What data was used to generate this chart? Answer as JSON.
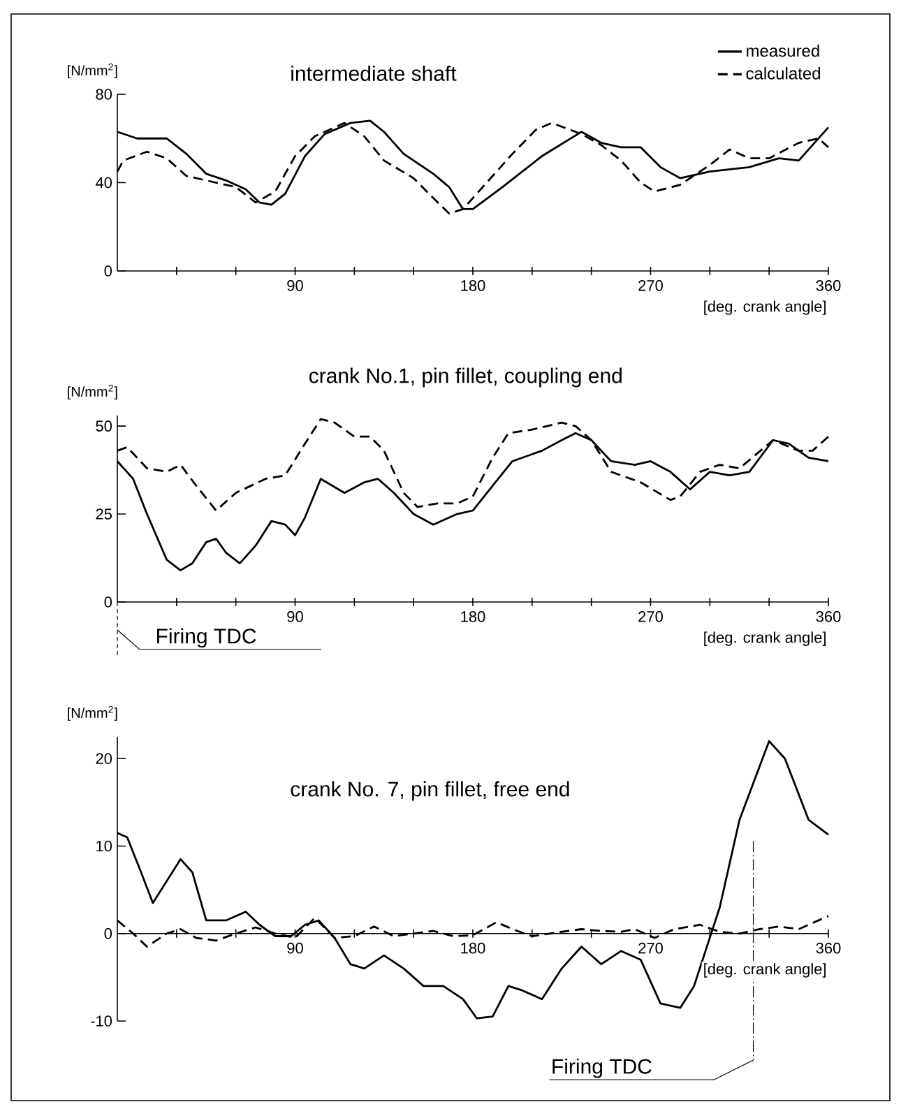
{
  "chart_data": [
    {
      "type": "line",
      "title": "intermediate shaft",
      "xlabel": "[deg. crank angle]",
      "ylabel": "[N/mm$^{2}$]",
      "xlim": [
        0,
        360
      ],
      "ylim": [
        0,
        80
      ],
      "yticks": [
        0,
        40,
        80
      ],
      "xticks": [
        {
          "value": 30,
          "label": null
        },
        {
          "value": 60,
          "label": null
        },
        90,
        {
          "value": 120,
          "label": null
        },
        {
          "value": 150,
          "label": null
        },
        180,
        {
          "value": 210,
          "label": null
        },
        {
          "value": 240,
          "label": null
        },
        270,
        {
          "value": 300,
          "label": null
        },
        {
          "value": 330,
          "label": null
        },
        360
      ],
      "legend": "top right",
      "marker": "none",
      "series": [
        {
          "name": "measured",
          "color": "#000000",
          "line_style": "solid",
          "x": [
            0,
            10,
            25,
            35,
            45,
            55,
            65,
            72,
            78,
            85,
            95,
            105,
            118,
            128,
            135,
            145,
            160,
            168,
            175,
            180,
            195,
            215,
            235,
            245,
            255,
            265,
            275,
            285,
            300,
            320,
            335,
            345,
            355,
            360
          ],
          "values": [
            63,
            60,
            60,
            53,
            44,
            41,
            37,
            31,
            30,
            35,
            52,
            62,
            67,
            68,
            63,
            53,
            44,
            38,
            28,
            28,
            38,
            52,
            63,
            58,
            56,
            56,
            47,
            42,
            45,
            47,
            51,
            50,
            60,
            65
          ]
        },
        {
          "name": "calculated",
          "color": "#000000",
          "line_style": "dashed",
          "x": [
            0,
            3,
            15,
            25,
            35,
            45,
            60,
            70,
            80,
            90,
            100,
            115,
            125,
            135,
            150,
            160,
            168,
            175,
            185,
            200,
            212,
            220,
            235,
            245,
            255,
            265,
            272,
            285,
            300,
            310,
            320,
            330,
            345,
            355,
            360
          ],
          "values": [
            45,
            50,
            54,
            51,
            43,
            41,
            38,
            31,
            36,
            52,
            61,
            67,
            61,
            50,
            42,
            33,
            26,
            28,
            38,
            53,
            64,
            67,
            62,
            57,
            50,
            40,
            36,
            39,
            48,
            55,
            51,
            51,
            58,
            60,
            56
          ]
        }
      ]
    },
    {
      "type": "line",
      "title": "crank No.1, pin fillet, coupling end",
      "xlabel": "[deg. crank angle]",
      "ylabel": "[N/mm$^{2}$]",
      "xlim": [
        0,
        360
      ],
      "ylim": [
        0,
        53
      ],
      "yticks": [
        0,
        25,
        50
      ],
      "xticks": [
        {
          "value": 30,
          "label": null
        },
        {
          "value": 60,
          "label": null
        },
        90,
        {
          "value": 120,
          "label": null
        },
        {
          "value": 150,
          "label": null
        },
        180,
        {
          "value": 210,
          "label": null
        },
        {
          "value": 240,
          "label": null
        },
        270,
        {
          "value": 300,
          "label": null
        },
        {
          "value": 330,
          "label": null
        },
        360
      ],
      "marker": "none",
      "annotations": [
        "Firing TDC"
      ],
      "series": [
        {
          "color": "#000000",
          "line_style": "solid",
          "x": [
            0,
            8,
            15,
            25,
            32,
            38,
            45,
            50,
            55,
            62,
            70,
            78,
            85,
            90,
            95,
            103,
            115,
            125,
            132,
            140,
            150,
            160,
            172,
            180,
            190,
            200,
            215,
            225,
            232,
            240,
            250,
            262,
            270,
            280,
            290,
            300,
            310,
            320,
            332,
            340,
            350,
            360
          ],
          "values": [
            40,
            35,
            25,
            12,
            9,
            11,
            17,
            18,
            14,
            11,
            16,
            23,
            22,
            19,
            24,
            35,
            31,
            34,
            35,
            31,
            25,
            22,
            25,
            26,
            33,
            40,
            43,
            46,
            48,
            46,
            40,
            39,
            40,
            37,
            32,
            37,
            36,
            37,
            46,
            45,
            41,
            40
          ]
        },
        {
          "color": "#000000",
          "line_style": "dashed",
          "x": [
            0,
            5,
            15,
            25,
            32,
            40,
            50,
            60,
            75,
            85,
            95,
            103,
            110,
            120,
            128,
            135,
            145,
            152,
            162,
            172,
            180,
            190,
            198,
            210,
            225,
            232,
            240,
            250,
            265,
            280,
            285,
            295,
            305,
            315,
            332,
            345,
            352,
            360
          ],
          "values": [
            43,
            44,
            38,
            37,
            39,
            33,
            26,
            31,
            35,
            36,
            45,
            52,
            51,
            47,
            47,
            43,
            31,
            27,
            28,
            28,
            30,
            41,
            48,
            49,
            51,
            50,
            46,
            37,
            34,
            29,
            30,
            37,
            39,
            38,
            46,
            43,
            43,
            47
          ]
        }
      ]
    },
    {
      "type": "line",
      "title": "crank No. 7, pin fillet, free end",
      "xlabel": "[deg. crank angle]",
      "ylabel": "[N/mm$^{2}$]",
      "xlim": [
        0,
        360
      ],
      "ylim": [
        -10,
        22.5
      ],
      "yticks": [
        -10,
        0,
        10,
        20
      ],
      "xticks": [
        {
          "value": 30,
          "label": null
        },
        {
          "value": 60,
          "label": null
        },
        90,
        {
          "value": 120,
          "label": null
        },
        {
          "value": 150,
          "label": null
        },
        180,
        {
          "value": 210,
          "label": null
        },
        {
          "value": 240,
          "label": null
        },
        270,
        {
          "value": 300,
          "label": null
        },
        {
          "value": 330,
          "label": null
        },
        360
      ],
      "marker": "none",
      "ref_lines": [
        {
          "axis": "x",
          "value": 322,
          "label": "Firing TDC",
          "line_style": "dashed"
        }
      ],
      "series": [
        {
          "color": "#000000",
          "line_style": "solid",
          "x": [
            0,
            5,
            12,
            18,
            25,
            32,
            38,
            45,
            55,
            65,
            72,
            80,
            88,
            95,
            102,
            110,
            118,
            125,
            135,
            145,
            155,
            165,
            175,
            182,
            190,
            198,
            205,
            215,
            225,
            235,
            245,
            255,
            265,
            275,
            285,
            292,
            305,
            315,
            330,
            338,
            350,
            360
          ],
          "values": [
            11.5,
            11,
            7,
            3.5,
            6,
            8.5,
            7,
            1.5,
            1.5,
            2.5,
            1,
            -0.3,
            -0.3,
            1,
            1.5,
            -0.5,
            -3.5,
            -4,
            -2.5,
            -4,
            -6,
            -6,
            -7.5,
            -9.7,
            -9.5,
            -6,
            -6.5,
            -7.5,
            -4,
            -1.5,
            -3.5,
            -2,
            -3,
            -8,
            -8.5,
            -6,
            3,
            13,
            22,
            20,
            13,
            11.3
          ]
        },
        {
          "color": "#000000",
          "line_style": "dashed",
          "x": [
            0,
            8,
            15,
            25,
            32,
            40,
            50,
            60,
            70,
            80,
            90,
            100,
            110,
            120,
            130,
            140,
            150,
            160,
            170,
            180,
            192,
            200,
            210,
            225,
            235,
            245,
            255,
            262,
            272,
            282,
            295,
            305,
            315,
            325,
            335,
            345,
            360
          ],
          "values": [
            1.5,
            0,
            -1.5,
            0,
            0.5,
            -0.5,
            -0.8,
            0,
            0.7,
            0,
            -0.5,
            1.8,
            -0.5,
            -0.3,
            0.8,
            -0.3,
            0,
            0.3,
            -0.3,
            -0.2,
            1.3,
            0.5,
            -0.3,
            0.2,
            0.5,
            0.3,
            0.2,
            0.5,
            -0.5,
            0.5,
            1,
            0.2,
            0,
            0.5,
            0.8,
            0.5,
            2
          ]
        }
      ]
    }
  ]
}
